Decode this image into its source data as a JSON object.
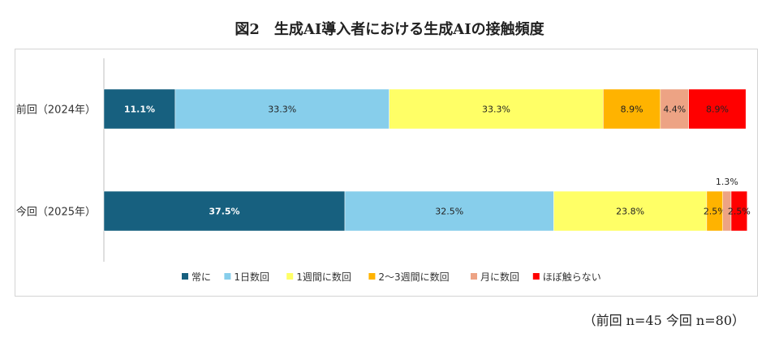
{
  "figure_title": "図2　生成AI導入者における生成AIの接触頻度",
  "sample_note": "（前回 n=45 今回 n=80）",
  "chart_data": {
    "type": "bar",
    "orientation": "horizontal",
    "stacked": true,
    "percent": true,
    "categories": [
      "前回（2024年）",
      "今回（2025年）"
    ],
    "series": [
      {
        "name": "常に",
        "color": "#17607f",
        "values": [
          11.1,
          37.5
        ]
      },
      {
        "name": "1日数回",
        "color": "#87ceeb",
        "values": [
          33.3,
          32.5
        ]
      },
      {
        "name": "1週間に数回",
        "color": "#ffff66",
        "values": [
          33.3,
          23.8
        ]
      },
      {
        "name": "2〜3週間に数回",
        "color": "#ffb300",
        "values": [
          8.9,
          2.5
        ]
      },
      {
        "name": "月に数回",
        "color": "#eda384",
        "values": [
          4.4,
          1.3
        ]
      },
      {
        "name": "ほぼ触らない",
        "color": "#ff0000",
        "values": [
          8.9,
          2.5
        ]
      }
    ],
    "data_labels": [
      [
        "11.1%",
        "33.3%",
        "33.3%",
        "8.9%",
        "4.4%",
        "8.9%"
      ],
      [
        "37.5%",
        "32.5%",
        "23.8%",
        "2.5%",
        "1.3%",
        "2.5%"
      ]
    ],
    "xlim": [
      0,
      100
    ],
    "grid": false,
    "legend_position": "bottom"
  }
}
